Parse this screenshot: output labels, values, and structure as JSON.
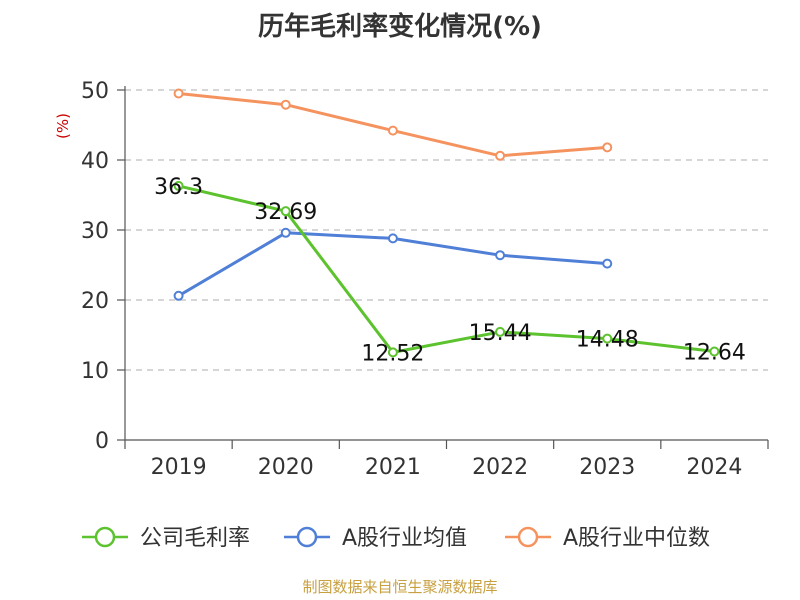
{
  "chart_data": {
    "type": "line",
    "title": "历年毛利率变化情况(%)",
    "ylabel": "(%)",
    "xlabel": "",
    "categories": [
      "2019",
      "2020",
      "2021",
      "2022",
      "2023",
      "2024"
    ],
    "ylim": [
      0,
      50
    ],
    "yticks": [
      0,
      10,
      20,
      30,
      40,
      50
    ],
    "grid": true,
    "legend_position": "bottom",
    "series": [
      {
        "name": "公司毛利率",
        "color": "#5cc22e",
        "values": [
          36.3,
          32.69,
          12.52,
          15.44,
          14.48,
          12.64
        ],
        "labels": [
          "36.3",
          "32.69",
          "12.52",
          "15.44",
          "14.48",
          "12.64"
        ]
      },
      {
        "name": "A股行业均值",
        "color": "#4f7fd6",
        "values": [
          20.6,
          29.6,
          28.8,
          26.4,
          25.2,
          null
        ]
      },
      {
        "name": "A股行业中位数",
        "color": "#f5935f",
        "values": [
          49.5,
          47.9,
          44.2,
          40.6,
          41.8,
          null
        ]
      }
    ],
    "source": "制图数据来自恒生聚源数据库"
  }
}
